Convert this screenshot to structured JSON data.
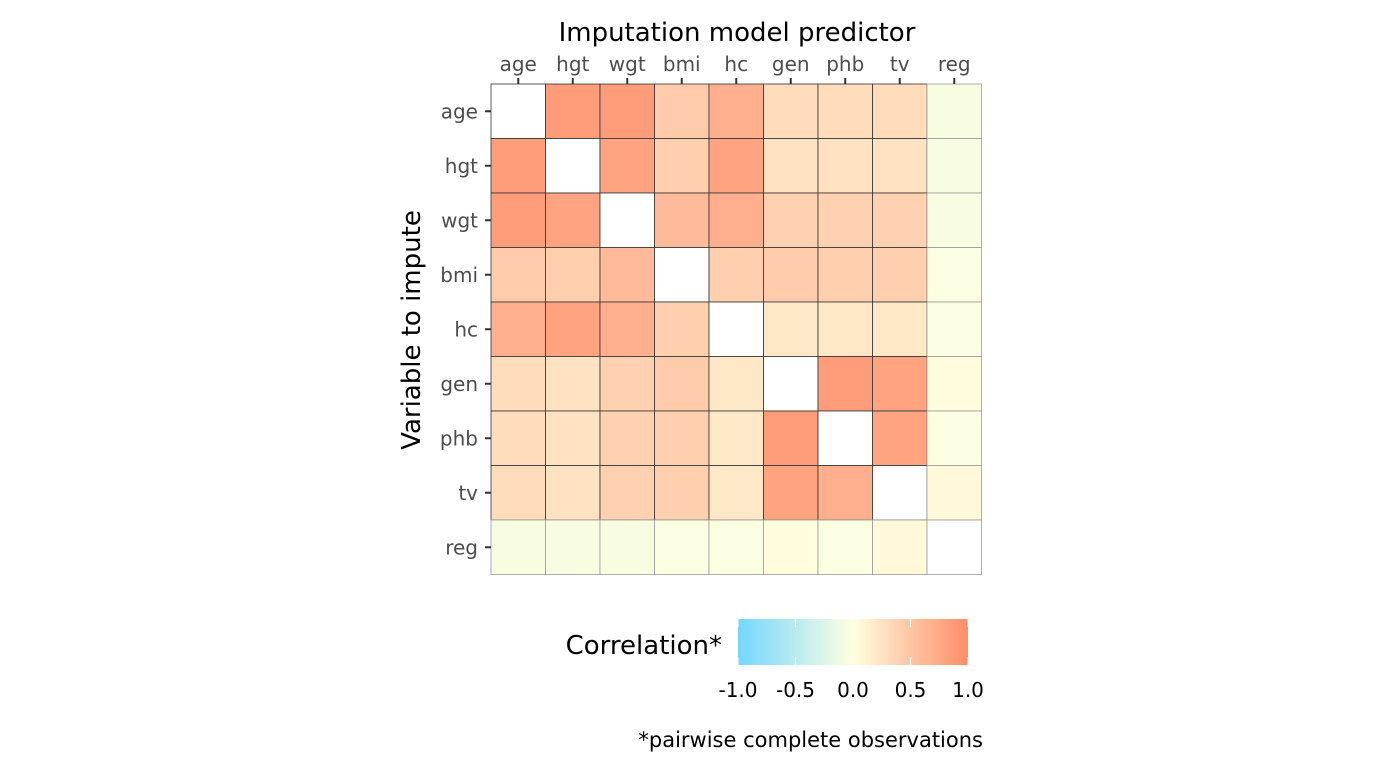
{
  "chart_data": {
    "type": "heatmap",
    "title": "Imputation model predictor",
    "xlabel": "Imputation model predictor",
    "ylabel": "Variable to impute",
    "x_categories": [
      "age",
      "hgt",
      "wgt",
      "bmi",
      "hc",
      "gen",
      "phb",
      "tv",
      "reg"
    ],
    "y_categories": [
      "age",
      "hgt",
      "wgt",
      "bmi",
      "hc",
      "gen",
      "phb",
      "tv",
      "reg"
    ],
    "values": [
      [
        null,
        0.85,
        0.85,
        0.45,
        0.7,
        0.3,
        0.3,
        0.3,
        -0.05
      ],
      [
        0.85,
        null,
        0.8,
        0.42,
        0.8,
        0.25,
        0.25,
        0.25,
        -0.05
      ],
      [
        0.85,
        0.8,
        null,
        0.6,
        0.7,
        0.4,
        0.4,
        0.4,
        -0.05
      ],
      [
        0.45,
        0.42,
        0.6,
        null,
        0.42,
        0.45,
        0.42,
        0.42,
        -0.03
      ],
      [
        0.7,
        0.8,
        0.7,
        0.42,
        null,
        0.2,
        0.2,
        0.2,
        -0.03
      ],
      [
        0.3,
        0.25,
        0.4,
        0.45,
        0.2,
        null,
        0.85,
        0.8,
        0.02
      ],
      [
        0.3,
        0.25,
        0.4,
        0.42,
        0.2,
        0.85,
        null,
        0.8,
        -0.03
      ],
      [
        0.3,
        0.25,
        0.4,
        0.42,
        0.2,
        0.8,
        0.7,
        null,
        0.05
      ],
      [
        -0.05,
        -0.05,
        -0.05,
        -0.03,
        -0.03,
        0.02,
        -0.03,
        0.05,
        null
      ]
    ],
    "legend": {
      "title": "Correlation*",
      "min": -1.0,
      "max": 1.0,
      "ticks": [
        -1.0,
        -0.5,
        0.0,
        0.5,
        1.0
      ],
      "tick_labels": [
        "-1.0",
        "-0.5",
        "0.0",
        "0.5",
        "1.0"
      ],
      "placement": "bottom",
      "colors": {
        "low": "#73D7FF",
        "mid": "#FFFFE0",
        "high": "#FF8C69"
      }
    },
    "caption": "*pairwise complete observations",
    "na_color": "#FFFFFF",
    "grid": false
  }
}
